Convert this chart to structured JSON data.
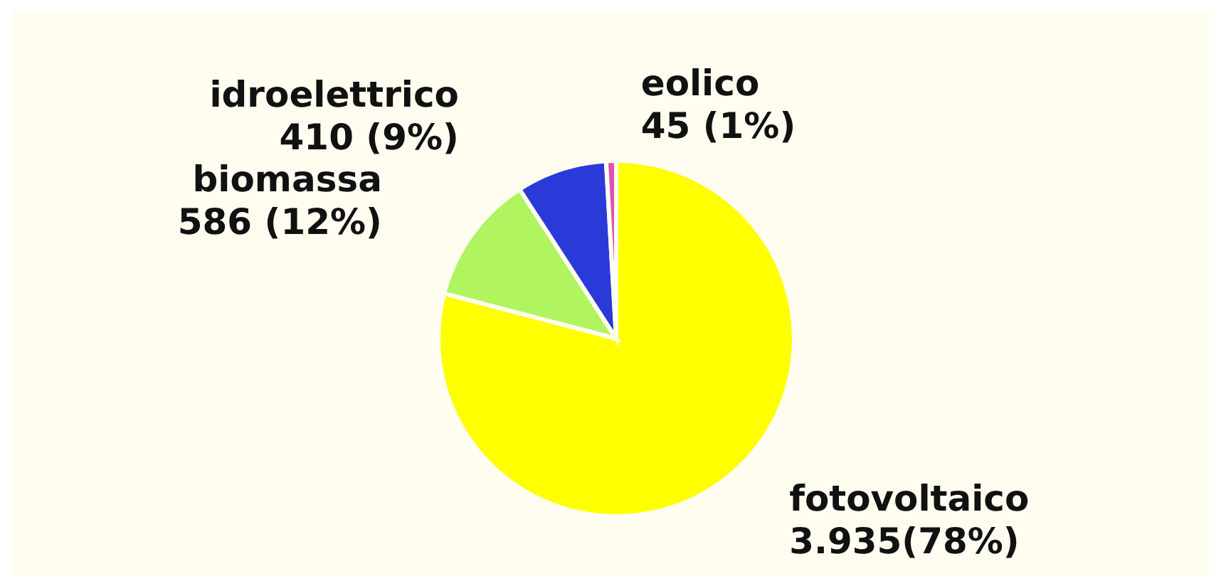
{
  "chart_data": {
    "type": "pie",
    "categories": [
      "fotovoltaico",
      "biomassa",
      "idroelettrico",
      "eolico"
    ],
    "values": [
      3935,
      586,
      410,
      45
    ],
    "colors": [
      "#ffff00",
      "#b0f460",
      "#2a3ad8",
      "#e050b0"
    ],
    "value_labels": [
      "3.935(78%)",
      "586 (12%)",
      "410 (9%)",
      "45 (1%)"
    ]
  }
}
